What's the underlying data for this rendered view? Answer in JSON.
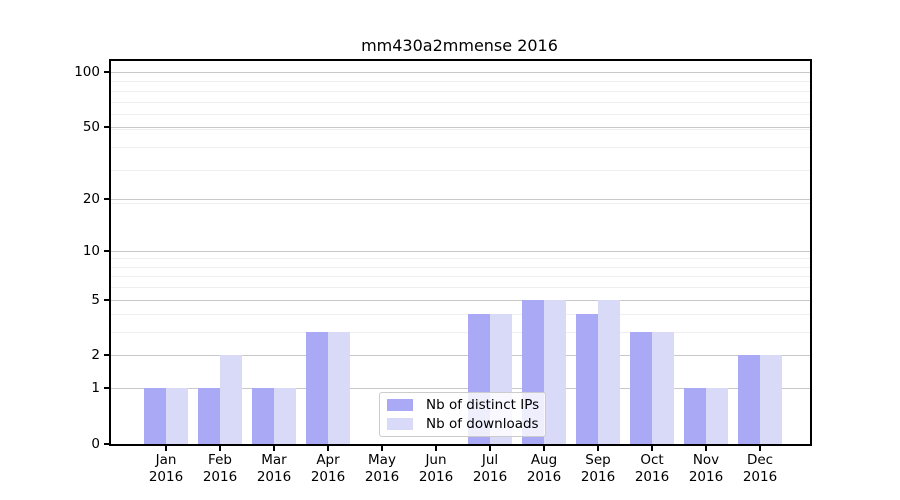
{
  "chart_data": {
    "type": "bar",
    "title": "mm430a2mmense 2016",
    "categories": [
      "Jan 2016",
      "Feb 2016",
      "Mar 2016",
      "Apr 2016",
      "May 2016",
      "Jun 2016",
      "Jul 2016",
      "Aug 2016",
      "Sep 2016",
      "Oct 2016",
      "Nov 2016",
      "Dec 2016"
    ],
    "series": [
      {
        "name": "Nb of distinct IPs",
        "color": "#a9a9f5",
        "values": [
          1,
          1,
          1,
          3,
          0,
          0,
          4,
          5,
          4,
          3,
          1,
          2
        ]
      },
      {
        "name": "Nb of downloads",
        "color": "#d9d9f8",
        "values": [
          1,
          2,
          1,
          3,
          0,
          0,
          4,
          5,
          5,
          3,
          1,
          2
        ]
      }
    ],
    "xlabel": "",
    "ylabel": "",
    "y_scale": "log1p",
    "ylim": [
      0,
      115
    ],
    "y_ticks": [
      0,
      1,
      2,
      5,
      10,
      20,
      50,
      100
    ],
    "y_minor_gridlines": [
      3,
      4,
      6,
      7,
      8,
      9,
      19,
      29,
      39,
      49,
      59,
      69,
      79,
      89
    ],
    "grid": true,
    "legend_position": "lower center (inside plot)"
  },
  "colors": {
    "background": "#ffffff",
    "spine": "#000000",
    "major_gridline": "#c8c8c8",
    "minor_gridline": "#efefef",
    "text": "#000000"
  }
}
